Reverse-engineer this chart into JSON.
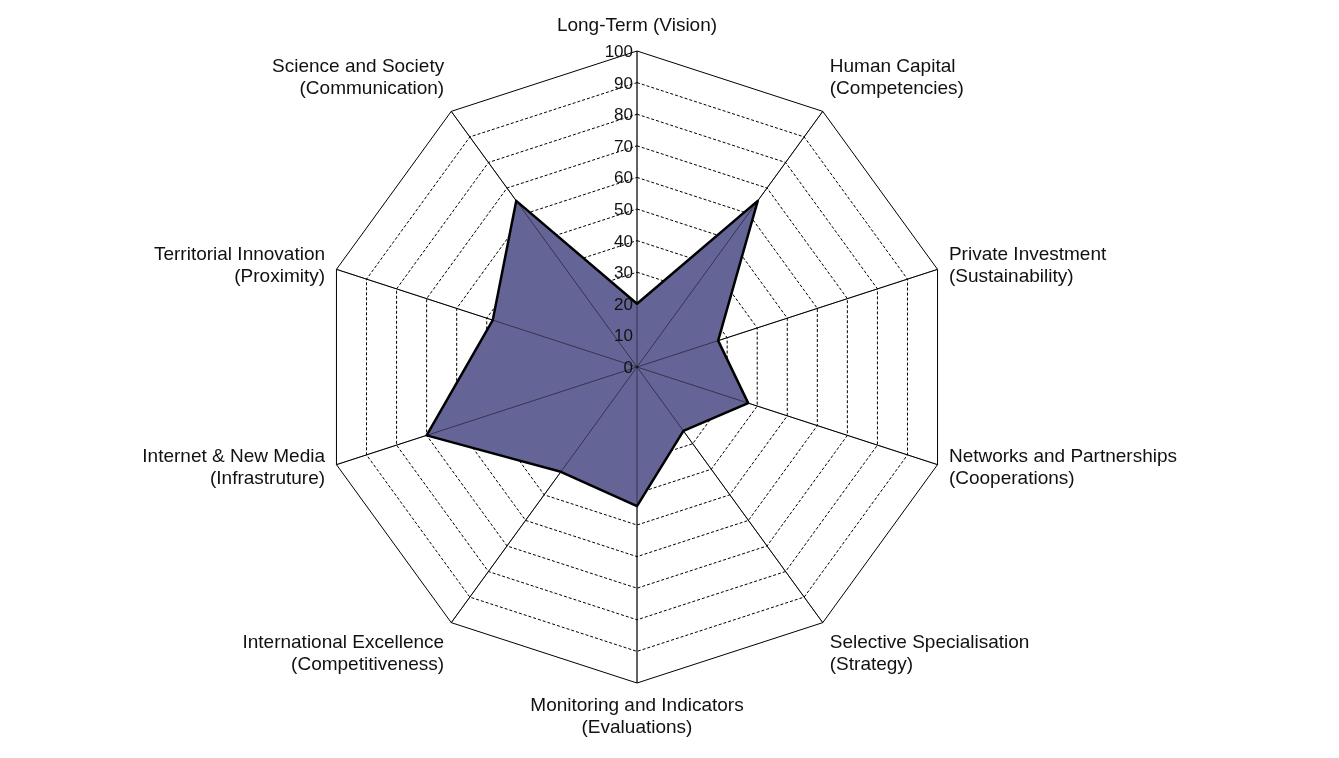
{
  "chart_data": {
    "type": "radar",
    "categories": [
      "Long-Term (Vision)",
      "Human Capital\n(Competencies)",
      "Private Investment\n(Sustainability)",
      "Networks and Partnerships\n(Cooperations)",
      "Selective Specialisation\n(Strategy)",
      "Monitoring and Indicators\n(Evaluations)",
      "International Excellence\n(Competitiveness)",
      "Internet & New Media\n(Infrastruture)",
      "Territorial Innovation\n(Proximity)",
      "Science and Society\n(Communication)"
    ],
    "series": [
      {
        "color": "#646496",
        "values": [
          20,
          65,
          27,
          37,
          25,
          44,
          41,
          70,
          48,
          65
        ]
      }
    ],
    "ylim": [
      0,
      100
    ],
    "yticks": [
      0,
      10,
      20,
      30,
      40,
      50,
      60,
      70,
      80,
      90,
      100
    ],
    "grid": true,
    "marker": "none",
    "line_style": "solid"
  }
}
